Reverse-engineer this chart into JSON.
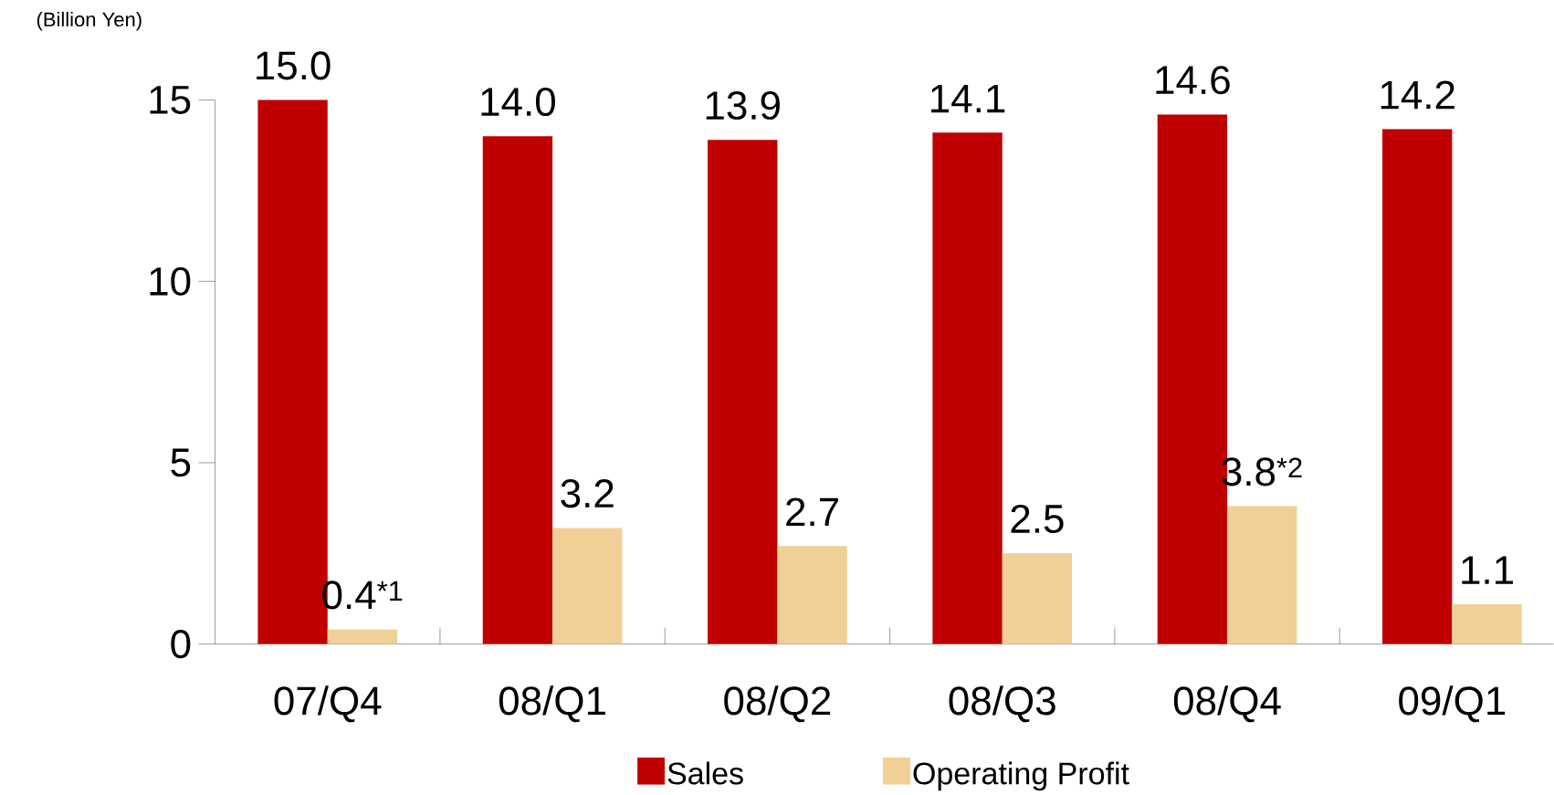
{
  "chart_data": {
    "type": "bar",
    "ylabel": "(Billion Yen)",
    "categories": [
      "07/Q4",
      "08/Q1",
      "08/Q2",
      "08/Q3",
      "08/Q4",
      "09/Q1"
    ],
    "series": [
      {
        "name": "Sales",
        "color": "#c00000",
        "values": [
          15.0,
          14.0,
          13.9,
          14.1,
          14.6,
          14.2
        ],
        "value_labels": [
          "15.0",
          "14.0",
          "13.9",
          "14.1",
          "14.6",
          "14.2"
        ]
      },
      {
        "name": "Operating Profit",
        "color": "#f0d096",
        "values": [
          0.4,
          3.2,
          2.7,
          2.5,
          3.8,
          1.1
        ],
        "value_labels": [
          "0.4$^{*1}$",
          "3.2",
          "2.7",
          "2.5",
          "3.8$^{*2}$",
          "1.1"
        ]
      }
    ],
    "ylim": [
      0,
      15
    ],
    "yticks": [
      0,
      5,
      10,
      15
    ],
    "grid": false,
    "legend": "bottom"
  }
}
